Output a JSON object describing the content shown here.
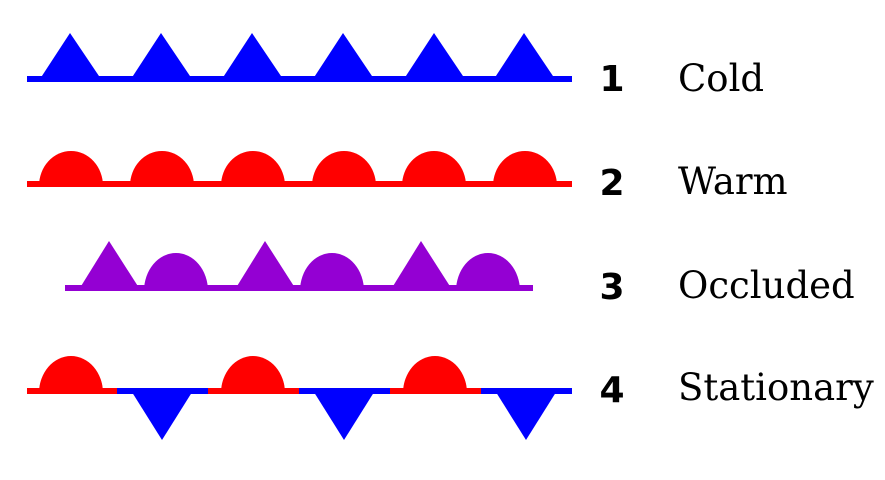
{
  "fronts": [
    {
      "number": "1",
      "name": "Cold",
      "icon": "cold-front-symbol",
      "color": "#0000ff"
    },
    {
      "number": "2",
      "name": "Warm",
      "icon": "warm-front-symbol",
      "color": "#ff0000"
    },
    {
      "number": "3",
      "name": "Occluded",
      "icon": "occluded-front-symbol",
      "color": "#9400d3"
    },
    {
      "number": "4",
      "name": "Stationary",
      "icon": "stationary-front-symbol",
      "colors": [
        "#ff0000",
        "#0000ff"
      ]
    }
  ]
}
